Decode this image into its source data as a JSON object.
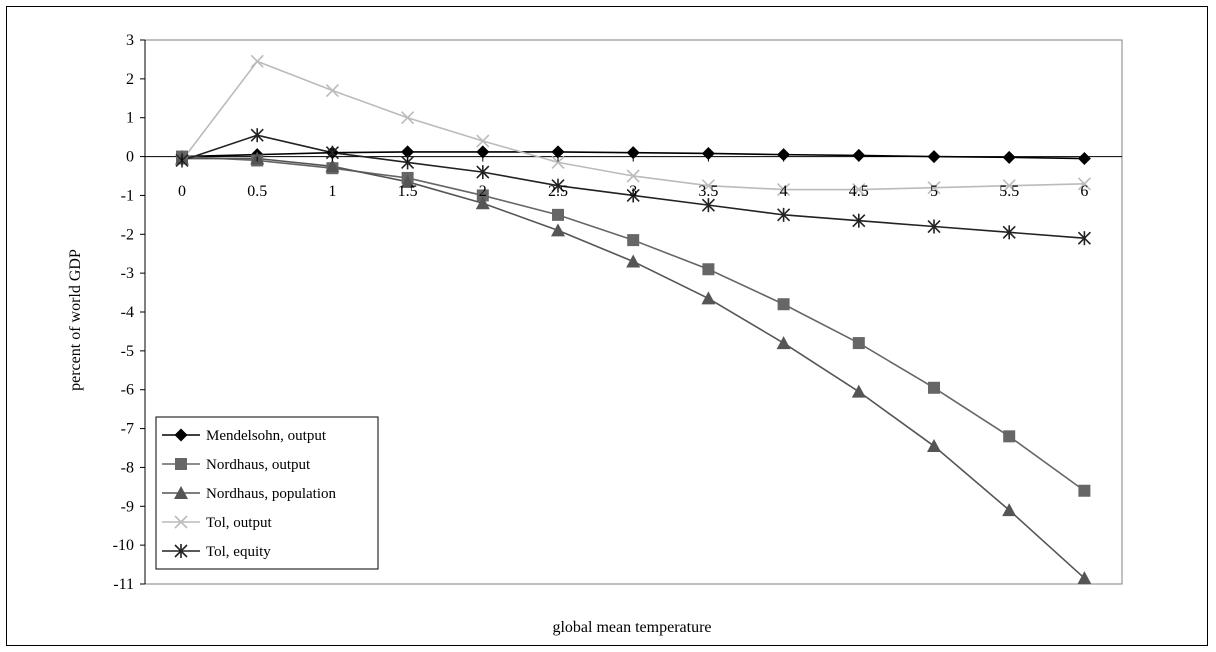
{
  "chart_data": {
    "type": "line",
    "xlabel": "global mean temperature",
    "ylabel": "percent of world GDP",
    "x": [
      0,
      0.5,
      1,
      1.5,
      2,
      2.5,
      3,
      3.5,
      4,
      4.5,
      5,
      5.5,
      6
    ],
    "x_tick_labels": [
      "0",
      "0.5",
      "1",
      "1.5",
      "2",
      "2.5",
      "3",
      "3.5",
      "4",
      "4.5",
      "5",
      "5.5",
      "6"
    ],
    "ylim": [
      -11,
      3
    ],
    "y_ticks": [
      3,
      2,
      1,
      0,
      -1,
      -2,
      -3,
      -4,
      -5,
      -6,
      -7,
      -8,
      -9,
      -10,
      -11
    ],
    "grid": false,
    "legend_position": "bottom-left",
    "series": [
      {
        "name": "Mendelsohn, output",
        "marker": "diamond",
        "color": "#000000",
        "values": [
          0,
          0.05,
          0.1,
          0.12,
          0.12,
          0.12,
          0.1,
          0.08,
          0.05,
          0.03,
          0,
          -0.02,
          -0.05
        ]
      },
      {
        "name": "Nordhaus, output",
        "marker": "square",
        "color": "#666666",
        "values": [
          0,
          -0.1,
          -0.3,
          -0.55,
          -1.0,
          -1.5,
          -2.15,
          -2.9,
          -3.8,
          -4.8,
          -5.95,
          -7.2,
          -8.6
        ]
      },
      {
        "name": "Nordhaus, population",
        "marker": "triangle",
        "color": "#555555",
        "values": [
          -0.05,
          -0.05,
          -0.25,
          -0.65,
          -1.2,
          -1.9,
          -2.7,
          -3.65,
          -4.8,
          -6.05,
          -7.45,
          -9.1,
          -10.85
        ]
      },
      {
        "name": "Tol, output",
        "marker": "x",
        "color": "#bbbbbb",
        "values": [
          -0.1,
          2.45,
          1.7,
          1.0,
          0.4,
          -0.15,
          -0.5,
          -0.75,
          -0.85,
          -0.85,
          -0.8,
          -0.75,
          -0.7
        ]
      },
      {
        "name": "Tol, equity",
        "marker": "star",
        "color": "#222222",
        "values": [
          -0.1,
          0.55,
          0.1,
          -0.15,
          -0.4,
          -0.75,
          -1.0,
          -1.25,
          -1.5,
          -1.65,
          -1.8,
          -1.95,
          -2.1
        ]
      }
    ]
  }
}
